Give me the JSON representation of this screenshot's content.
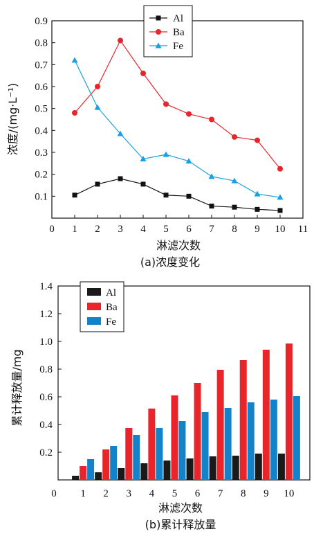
{
  "chart_data": [
    {
      "type": "line",
      "caption": "(a)浓度变化",
      "xlabel": "淋滤次数",
      "ylabel": "浓度/(mg·L⁻¹)",
      "xlim": [
        0,
        11
      ],
      "ylim": [
        0,
        0.9
      ],
      "xticks": [
        "0",
        "1",
        "2",
        "3",
        "4",
        "5",
        "6",
        "7",
        "8",
        "9",
        "10",
        "11"
      ],
      "yticks": [
        "0.1",
        "0.2",
        "0.3",
        "0.4",
        "0.5",
        "0.6",
        "0.7",
        "0.8",
        "0.9"
      ],
      "legend_position": "top-center",
      "x": [
        1,
        2,
        3,
        4,
        5,
        6,
        7,
        8,
        9,
        10
      ],
      "series": [
        {
          "name": "Al",
          "color": "#111111",
          "marker": "square",
          "values": [
            0.105,
            0.155,
            0.18,
            0.155,
            0.105,
            0.1,
            0.055,
            0.05,
            0.04,
            0.035
          ]
        },
        {
          "name": "Ba",
          "color": "#e8252a",
          "marker": "circle",
          "values": [
            0.48,
            0.6,
            0.81,
            0.66,
            0.52,
            0.475,
            0.45,
            0.37,
            0.355,
            0.225
          ]
        },
        {
          "name": "Fe",
          "color": "#1aa0e0",
          "marker": "triangle",
          "values": [
            0.72,
            0.505,
            0.385,
            0.27,
            0.29,
            0.26,
            0.19,
            0.17,
            0.11,
            0.095
          ]
        }
      ]
    },
    {
      "type": "bar",
      "caption": "(b)累计释放量",
      "xlabel": "淋滤次数",
      "ylabel": "累计释放量/mg",
      "ylim": [
        0,
        1.4
      ],
      "xticks": [
        "0",
        "1",
        "2",
        "3",
        "4",
        "5",
        "6",
        "7",
        "8",
        "9",
        "10"
      ],
      "yticks": [
        "0.2",
        "0.4",
        "0.6",
        "0.8",
        "1.0",
        "1.2",
        "1.4"
      ],
      "legend_position": "top-left",
      "categories": [
        "1",
        "2",
        "3",
        "4",
        "5",
        "6",
        "7",
        "8",
        "9",
        "10"
      ],
      "series": [
        {
          "name": "Al",
          "color": "#1a1a1a",
          "values": [
            0.03,
            0.055,
            0.085,
            0.12,
            0.14,
            0.155,
            0.17,
            0.175,
            0.19,
            0.19
          ]
        },
        {
          "name": "Ba",
          "color": "#e8252a",
          "values": [
            0.1,
            0.22,
            0.375,
            0.515,
            0.61,
            0.7,
            0.795,
            0.865,
            0.94,
            0.985
          ]
        },
        {
          "name": "Fe",
          "color": "#1482c8",
          "values": [
            0.15,
            0.245,
            0.325,
            0.375,
            0.425,
            0.49,
            0.52,
            0.56,
            0.58,
            0.605
          ]
        }
      ]
    }
  ]
}
